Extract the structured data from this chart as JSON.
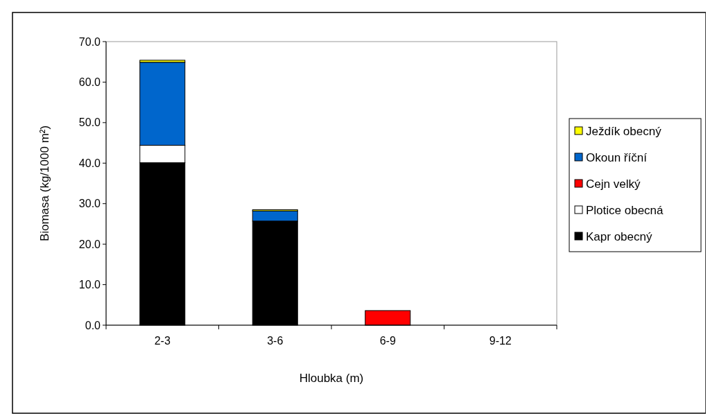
{
  "chart_data": {
    "type": "bar",
    "stacked": true,
    "xlabel": "Hloubka (m)",
    "ylabel": "Biomasa (kg/1000 m²)",
    "categories": [
      "2-3",
      "3-6",
      "6-9",
      "9-12"
    ],
    "series": [
      {
        "name": "Kapr obecný",
        "color": "#000000",
        "values": [
          40.1,
          25.7,
          0,
          0
        ]
      },
      {
        "name": "Plotice obecná",
        "color": "#ffffff",
        "values": [
          4.3,
          0,
          0,
          0
        ]
      },
      {
        "name": "Cejn velký",
        "color": "#ff0000",
        "values": [
          0,
          0,
          3.6,
          0
        ]
      },
      {
        "name": "Okoun říční",
        "color": "#0066cc",
        "values": [
          20.5,
          2.5,
          0,
          0
        ]
      },
      {
        "name": "Ježdík obecný",
        "color": "#ffff00",
        "values": [
          0.5,
          0.3,
          0,
          0
        ]
      }
    ],
    "ylim": [
      0,
      70
    ],
    "yticks": [
      {
        "value": 0,
        "label": "0.0"
      },
      {
        "value": 10,
        "label": "10.0"
      },
      {
        "value": 20,
        "label": "20.0"
      },
      {
        "value": 30,
        "label": "30.0"
      },
      {
        "value": 40,
        "label": "40.0"
      },
      {
        "value": 50,
        "label": "50.0"
      },
      {
        "value": 60,
        "label": "60.0"
      },
      {
        "value": 70,
        "label": "70.0"
      }
    ],
    "legend": "right"
  }
}
